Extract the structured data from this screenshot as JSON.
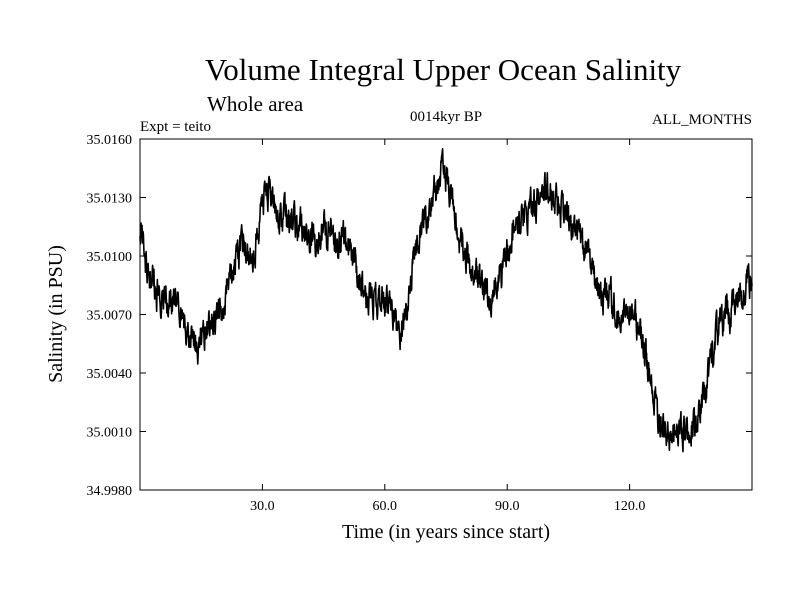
{
  "chart_data": {
    "type": "line",
    "title": "Volume Integral Upper Ocean Salinity",
    "subtitle": "Whole area",
    "experiment_label": "Expt = teito",
    "period_label": "0014kyr BP",
    "months_label": "ALL_MONTHS",
    "xlabel": "Time (in years since start)",
    "ylabel": "Salinity (in PSU)",
    "xlim": [
      0,
      150
    ],
    "ylim": [
      34.998,
      35.016
    ],
    "x_ticks": [
      30,
      60,
      90,
      120
    ],
    "x_tick_labels": [
      "30.0",
      "60.0",
      "90.0",
      "120.0"
    ],
    "y_ticks": [
      34.998,
      35.001,
      35.004,
      35.007,
      35.01,
      35.013,
      35.016
    ],
    "y_tick_labels": [
      "34.9980",
      "35.0010",
      "35.0040",
      "35.0070",
      "35.0100",
      "35.0130",
      "35.0160"
    ],
    "grid": false,
    "line_color": "#000000",
    "series": [
      {
        "name": "salinity",
        "x": [
          0,
          2,
          4,
          6,
          8,
          10,
          12,
          14,
          16,
          18,
          20,
          22,
          24,
          26,
          28,
          30,
          32,
          34,
          36,
          38,
          40,
          42,
          44,
          46,
          48,
          50,
          52,
          54,
          56,
          58,
          60,
          62,
          64,
          66,
          68,
          70,
          72,
          74,
          76,
          78,
          80,
          82,
          84,
          86,
          88,
          90,
          92,
          94,
          96,
          98,
          100,
          102,
          104,
          106,
          108,
          110,
          112,
          114,
          116,
          118,
          120,
          122,
          124,
          126,
          128,
          130,
          132,
          134,
          136,
          138,
          140,
          142,
          144,
          146,
          148,
          150
        ],
        "values": [
          35.0115,
          35.0092,
          35.008,
          35.0082,
          35.0078,
          35.007,
          35.0058,
          35.0054,
          35.0062,
          35.0068,
          35.0072,
          35.0088,
          35.01,
          35.0104,
          35.01,
          35.0125,
          35.0135,
          35.0123,
          35.0118,
          35.0115,
          35.0113,
          35.0108,
          35.0112,
          35.0112,
          35.0105,
          35.0108,
          35.0102,
          35.0088,
          35.0079,
          35.0076,
          35.0078,
          35.007,
          35.0058,
          35.0082,
          35.0106,
          35.0118,
          35.013,
          35.0144,
          35.0135,
          35.011,
          35.0102,
          35.0094,
          35.0085,
          35.0077,
          35.009,
          35.0102,
          35.0114,
          35.0121,
          35.0126,
          35.0128,
          35.0135,
          35.0127,
          35.012,
          35.0116,
          35.0108,
          35.0095,
          35.0082,
          35.008,
          35.0078,
          35.0068,
          35.0072,
          35.0066,
          35.0048,
          35.0024,
          35.0016,
          35.001,
          35.0012,
          35.0008,
          35.0013,
          35.0025,
          35.0045,
          35.0065,
          35.007,
          35.0073,
          35.0084,
          35.009
        ]
      }
    ]
  }
}
